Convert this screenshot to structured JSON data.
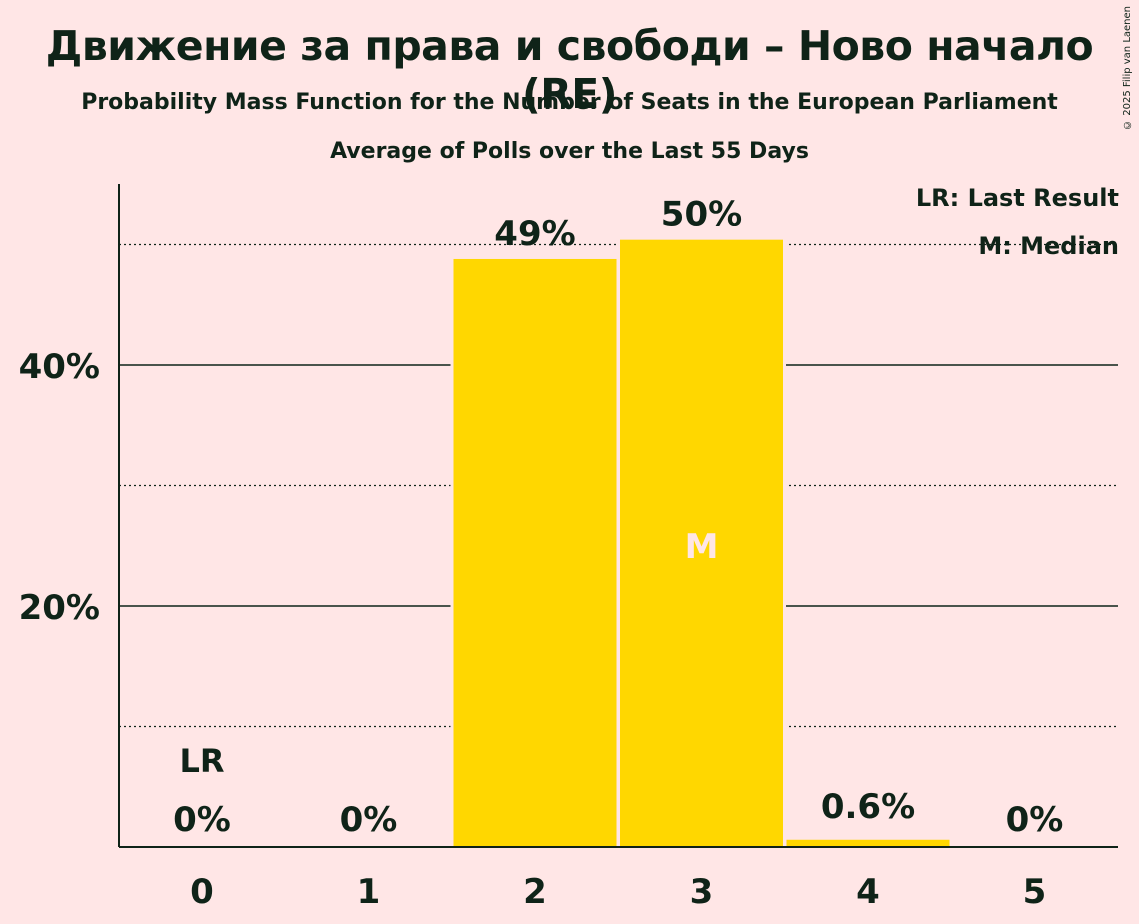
{
  "title": "Движение за права и свободи – Ново начало (RE)",
  "subtitle": "Probability Mass Function for the Number of Seats in the European Parliament",
  "subtitle2": "Average of Polls over the Last 55 Days",
  "copyright": "© 2025 Filip van Laenen",
  "legend": {
    "last_result": "LR: Last Result",
    "median": "M: Median"
  },
  "colors": {
    "bar": "#FFD700",
    "background": "#FFE6E6",
    "text": "#0F2318"
  },
  "chart_data": {
    "type": "bar",
    "categories": [
      "0",
      "1",
      "2",
      "3",
      "4",
      "5"
    ],
    "values": [
      0,
      0,
      48.8,
      50.4,
      0.6,
      0
    ],
    "value_labels": [
      "0%",
      "0%",
      "49%",
      "50%",
      "0.6%",
      "0%"
    ],
    "ylim": [
      0,
      55
    ],
    "major_ticks": [
      20,
      40
    ],
    "major_tick_labels": [
      "20%",
      "40%"
    ],
    "minor_gridlines": [
      10,
      30,
      50
    ],
    "last_result_category": "0",
    "last_result_marker": "LR",
    "median_category": "3",
    "median_marker": "M",
    "grid": true,
    "legend_position": "top-right"
  }
}
